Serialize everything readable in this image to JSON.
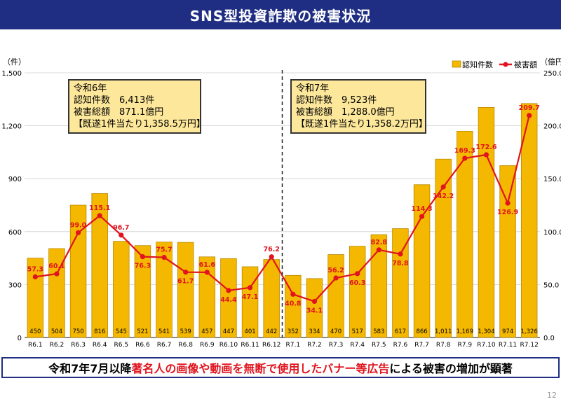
{
  "title": "SNS型投資詐欺の被害状況",
  "left_unit": "（件）",
  "right_unit": "（億円）",
  "legend": {
    "bar": "認知件数",
    "line": "被害額"
  },
  "box_r6": {
    "line1": "令和6年",
    "line2": "認知件数　6,413件",
    "line3": "被害総額　871.1億円",
    "line4": "【既遂1件当たり1,358.5万円】"
  },
  "box_r7": {
    "line1": "令和7年",
    "line2": "認知件数　9,523件",
    "line3": "被害総額　1,288.0億円",
    "line4": "【既遂1件当たり1,358.2万円】"
  },
  "footer": {
    "before": "令和7年7月以降",
    "highlight": "著名人の画像や動画を無断で使用したバナー等広告",
    "after": "による被害の増加が顕著"
  },
  "page_number": "12",
  "colors": {
    "bar": "#f5b800",
    "bar_stroke": "#b98a00",
    "line": "#e0141e",
    "title_bg": "#1f2e82"
  },
  "chart_data": {
    "type": "bar",
    "categories": [
      "R6.1",
      "R6.2",
      "R6.3",
      "R6.4",
      "R6.5",
      "R6.6",
      "R6.7",
      "R6.8",
      "R6.9",
      "R6.10",
      "R6.11",
      "R6.12",
      "R7.1",
      "R7.2",
      "R7.3",
      "R7.4",
      "R7.5",
      "R7.6",
      "R7.7",
      "R7.8",
      "R7.9",
      "R7.10",
      "R7.11",
      "R7.12"
    ],
    "series": [
      {
        "name": "認知件数",
        "axis": "left",
        "type": "bar",
        "values": [
          450,
          504,
          750,
          816,
          545,
          521,
          541,
          539,
          457,
          447,
          401,
          442,
          352,
          334,
          470,
          517,
          583,
          617,
          866,
          1011,
          1169,
          1304,
          974,
          1326
        ],
        "labels": [
          "450",
          "504",
          "750",
          "816",
          "545",
          "521",
          "541",
          "539",
          "457",
          "447",
          "401",
          "442",
          "352",
          "334",
          "470",
          "517",
          "583",
          "617",
          "866",
          "1,011",
          "1,169",
          "1,304",
          "974",
          "1,326"
        ]
      },
      {
        "name": "被害額",
        "axis": "right",
        "type": "line",
        "values": [
          57.3,
          60.1,
          99.0,
          115.1,
          96.7,
          76.3,
          75.7,
          61.7,
          61.6,
          44.4,
          47.1,
          76.2,
          40.8,
          34.1,
          56.2,
          60.3,
          82.8,
          78.8,
          114.3,
          142.2,
          169.3,
          172.6,
          126.9,
          209.7
        ],
        "labels": [
          "57.3",
          "60.1",
          "99.0",
          "115.1",
          "96.7",
          "76.3",
          "75.7",
          "61.7",
          "61.6",
          "44.4",
          "47.1",
          "76.2",
          "40.8",
          "34.1",
          "56.2",
          "60.3",
          "82.8",
          "78.8",
          "114.3",
          "142.2",
          "169.3",
          "172.6",
          "126.9",
          "209.7"
        ]
      }
    ],
    "ylim": [
      0,
      1500
    ],
    "y_ticks": [
      "0",
      "300",
      "600",
      "900",
      "1,200",
      "1,500"
    ],
    "y2lim": [
      0,
      250
    ],
    "y2_ticks": [
      "0.0",
      "50.0",
      "100.0",
      "150.0",
      "200.0",
      "250.0"
    ],
    "grid": true,
    "legend_position": "top-right",
    "divider_after": "R6.12"
  }
}
